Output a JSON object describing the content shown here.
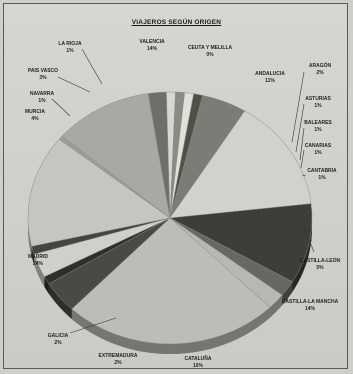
{
  "chart_data": {
    "type": "pie",
    "title": "VIAJEROS SEGÚN ORIGEN",
    "slices": [
      {
        "label": "VALENCIA",
        "value": 14,
        "value_text": "14%",
        "color": "#c6c6c0"
      },
      {
        "label": "CEUTA Y MELILLA",
        "value": 0.5,
        "value_text": "0%",
        "color": "#9d9d97"
      },
      {
        "label": "ANDALUCIA",
        "value": 11,
        "value_text": "11%",
        "color": "#a9a9a3"
      },
      {
        "label": "ARAGÓN",
        "value": 2,
        "value_text": "2%",
        "color": "#6f6f6a"
      },
      {
        "label": "ASTURIAS",
        "value": 1,
        "value_text": "1%",
        "color": "#d7d7d1"
      },
      {
        "label": "BALEARES",
        "value": 1,
        "value_text": "1%",
        "color": "#8b8b85"
      },
      {
        "label": "CANARIAS",
        "value": 1,
        "value_text": "1%",
        "color": "#e1e1db"
      },
      {
        "label": "CANTABRIA",
        "value": 1,
        "value_text": "1%",
        "color": "#505049"
      },
      {
        "label": "CASTILLA-LEON",
        "value": 5,
        "value_text": "5%",
        "color": "#7c7c76"
      },
      {
        "label": "CASTILLA-LA MANCHA",
        "value": 14,
        "value_text": "14%",
        "color": "#d2d2cc"
      },
      {
        "label": "CATALUÑA",
        "value": 10,
        "value_text": "10%",
        "color": "#3e3e39"
      },
      {
        "label": "EXTREMADURA",
        "value": 2,
        "value_text": "2%",
        "color": "#686863"
      },
      {
        "label": "GALICIA",
        "value": 2,
        "value_text": "2%",
        "color": "#b8b8b2"
      },
      {
        "label": "MADRID",
        "value": 24,
        "value_text": "24%",
        "color": "#bdbdb7"
      },
      {
        "label": "MURCIA",
        "value": 4,
        "value_text": "4%",
        "color": "#4a4a45"
      },
      {
        "label": "NAVARRA",
        "value": 1,
        "value_text": "1%",
        "color": "#2e2e2a"
      },
      {
        "label": "PAIS VASCO",
        "value": 3,
        "value_text": "3%",
        "color": "#d0d0ca"
      },
      {
        "label": "LA RIOJA",
        "value": 1,
        "value_text": "1%",
        "color": "#454540"
      }
    ]
  }
}
